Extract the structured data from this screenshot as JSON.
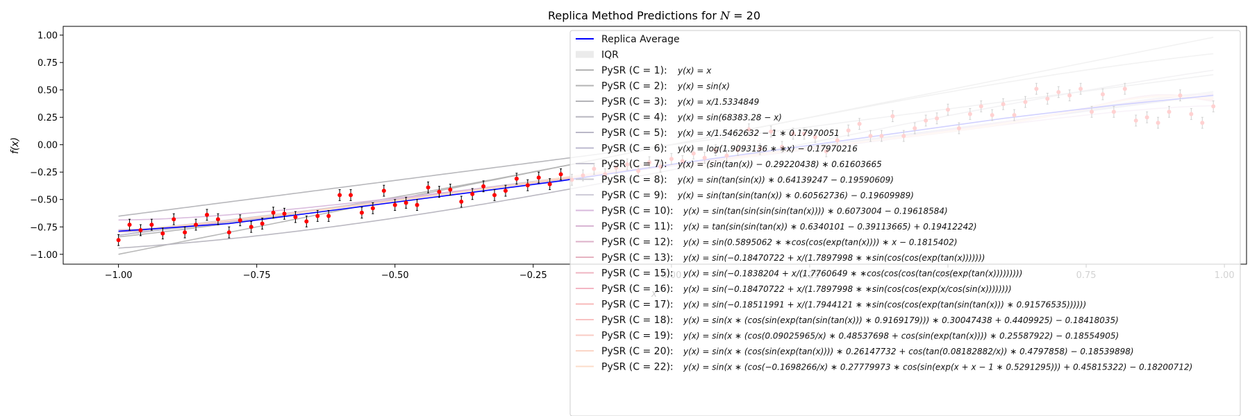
{
  "chart_data": {
    "type": "line",
    "title": "Replica Method Predictions for N = 20",
    "title_parts": [
      "Replica Method Predictions for ",
      "N",
      " = 20"
    ],
    "xlabel": "x",
    "ylabel": "f(x)",
    "xlim": [
      -1.1,
      1.04
    ],
    "ylim": [
      -1.09,
      1.08
    ],
    "xticks": [
      -1.0,
      -0.75,
      -0.5,
      -0.25,
      0.0,
      0.25,
      0.5,
      0.75,
      1.0
    ],
    "xtick_labels": [
      "−1.00",
      "−0.75",
      "−0.50",
      "−0.25",
      "0.00",
      "0.25",
      "0.50",
      "0.75",
      "1.00"
    ],
    "yticks": [
      -1.0,
      -0.75,
      -0.5,
      -0.25,
      0.0,
      0.25,
      0.5,
      0.75,
      1.0
    ],
    "ytick_labels": [
      "−1.00",
      "−0.75",
      "−0.50",
      "−0.25",
      "0.00",
      "0.25",
      "0.50",
      "0.75",
      "1.00"
    ],
    "grid": false,
    "legend_position": "top-right",
    "replica_average": {
      "name": "Replica Average",
      "color": "#0000ff",
      "x": [
        -1.0,
        -0.8,
        -0.6,
        -0.4,
        -0.2,
        0.0,
        0.2,
        0.4,
        0.6,
        0.8,
        0.98
      ],
      "y": [
        -0.79,
        -0.72,
        -0.59,
        -0.46,
        -0.33,
        -0.18,
        -0.04,
        0.1,
        0.24,
        0.36,
        0.45
      ]
    },
    "iqr": {
      "name": "IQR",
      "color": "#dddddd"
    },
    "data_points": {
      "x": [
        -1.0,
        -0.98,
        -0.96,
        -0.94,
        -0.92,
        -0.9,
        -0.88,
        -0.86,
        -0.84,
        -0.82,
        -0.8,
        -0.78,
        -0.76,
        -0.74,
        -0.72,
        -0.7,
        -0.68,
        -0.66,
        -0.64,
        -0.62,
        -0.6,
        -0.58,
        -0.56,
        -0.54,
        -0.52,
        -0.5,
        -0.48,
        -0.46,
        -0.44,
        -0.42,
        -0.4,
        -0.38,
        -0.36,
        -0.34,
        -0.32,
        -0.3,
        -0.28,
        -0.26,
        -0.24,
        -0.22,
        -0.2,
        -0.18,
        -0.16,
        -0.14,
        -0.12,
        -0.1,
        -0.08,
        -0.06,
        -0.04,
        -0.02,
        0.0,
        0.02,
        0.04,
        0.06,
        0.08,
        0.1,
        0.12,
        0.14,
        0.16,
        0.18,
        0.2,
        0.22,
        0.24,
        0.26,
        0.28,
        0.3,
        0.32,
        0.34,
        0.36,
        0.38,
        0.4,
        0.42,
        0.44,
        0.46,
        0.48,
        0.5,
        0.52,
        0.54,
        0.56,
        0.58,
        0.6,
        0.62,
        0.64,
        0.66,
        0.68,
        0.7,
        0.72,
        0.74,
        0.76,
        0.78,
        0.8,
        0.82,
        0.84,
        0.86,
        0.88,
        0.9,
        0.92,
        0.94,
        0.96,
        0.98
      ],
      "y": [
        -0.87,
        -0.73,
        -0.78,
        -0.73,
        -0.81,
        -0.68,
        -0.8,
        -0.73,
        -0.64,
        -0.68,
        -0.8,
        -0.69,
        -0.75,
        -0.72,
        -0.62,
        -0.63,
        -0.66,
        -0.7,
        -0.65,
        -0.65,
        -0.46,
        -0.46,
        -0.62,
        -0.58,
        -0.42,
        -0.55,
        -0.53,
        -0.55,
        -0.39,
        -0.43,
        -0.41,
        -0.52,
        -0.45,
        -0.38,
        -0.46,
        -0.42,
        -0.31,
        -0.37,
        -0.3,
        -0.36,
        -0.27,
        -0.32,
        -0.28,
        -0.22,
        -0.27,
        -0.21,
        -0.18,
        -0.24,
        -0.16,
        -0.2,
        -0.13,
        -0.15,
        -0.08,
        -0.12,
        -0.05,
        -0.1,
        -0.05,
        0.14,
        -0.04,
        0.12,
        -0.02,
        0.1,
        0.1,
        0.07,
        -0.06,
        0.04,
        0.13,
        0.19,
        0.08,
        0.08,
        0.26,
        0.08,
        0.15,
        0.22,
        0.24,
        0.32,
        0.15,
        0.28,
        0.35,
        0.27,
        0.37,
        0.27,
        0.39,
        0.51,
        0.42,
        0.48,
        0.45,
        0.51,
        0.3,
        0.46,
        0.3,
        0.51,
        0.22,
        0.25,
        0.2,
        0.3,
        0.45,
        0.28,
        0.2,
        0.35
      ],
      "err": 0.05
    },
    "pysr_models": [
      {
        "label": "PySR (C = 1):",
        "expr": "y(x) = x",
        "color": "#b4b4b4"
      },
      {
        "label": "PySR (C = 2):",
        "expr": "y(x) = sin(x)",
        "color": "#b4b4b4"
      },
      {
        "label": "PySR (C = 3):",
        "expr": "y(x) = x/1.5334849",
        "color": "#b4b4b8"
      },
      {
        "label": "PySR (C = 4):",
        "expr": "y(x) = sin(68383.28 − x)",
        "color": "#b7b5bf"
      },
      {
        "label": "PySR (C = 5):",
        "expr": "y(x) = x/1.5462632 − 1 ∗ 0.17970051",
        "color": "#bab8c7"
      },
      {
        "label": "PySR (C = 6):",
        "expr": "y(x) = log(1.9093136 ∗ ∗x) − 0.17970216",
        "color": "#bcb8cf"
      },
      {
        "label": "PySR (C = 7):",
        "expr": "y(x) = (sin(tan(x)) − 0.29220438) ∗ 0.61603665",
        "color": "#c4c2cf"
      },
      {
        "label": "PySR (C = 8):",
        "expr": "y(x) = sin(tan(sin(x)) ∗ 0.64139247 − 0.19590609)",
        "color": "#c9c8d2"
      },
      {
        "label": "PySR (C = 9):",
        "expr": "y(x) = sin(tan(sin(tan(x)) ∗ 0.60562736) − 0.19609989)",
        "color": "#cfccd8"
      },
      {
        "label": "PySR (C = 10):",
        "expr": "y(x) = sin(tan(sin(sin(sin(tan(x)))) ∗ 0.6073004 − 0.19618584)",
        "color": "#d8b9dc"
      },
      {
        "label": "PySR (C = 11):",
        "expr": "y(x) = tan(sin(sin(tan(x)) ∗ 0.6340101 − 0.39113665) + 0.19412242)",
        "color": "#d9b5d4"
      },
      {
        "label": "PySR (C = 12):",
        "expr": "y(x) = sin(0.5895062 ∗ ∗cos(cos(exp(tan(x)))) ∗ x − 0.1815402)",
        "color": "#deb0c8"
      },
      {
        "label": "PySR (C = 13):",
        "expr": "y(x) = sin(−0.18470722 + x/(1.7897998 ∗ ∗sin(cos(cos(exp(tan(x)))))))",
        "color": "#e6b3c1"
      },
      {
        "label": "PySR (C = 15):",
        "expr": "y(x) = sin(−0.1838204 + x/(1.7760649 ∗ ∗cos(cos(cos(tan(cos(exp(tan(x)))))))))",
        "color": "#efb4c2"
      },
      {
        "label": "PySR (C = 16):",
        "expr": "y(x) = sin(−0.18470722 + x/(1.7897998 ∗ ∗sin(cos(cos(exp(x/cos(sin(x))))))))",
        "color": "#f4b6c4"
      },
      {
        "label": "PySR (C = 17):",
        "expr": "y(x) = sin(−0.18511991 + x/(1.7944121 ∗ ∗sin(cos(cos(exp(tan(sin(tan(x))) ∗ 0.91576535))))))",
        "color": "#f8b8b8"
      },
      {
        "label": "PySR (C = 18):",
        "expr": "y(x) = sin(x ∗ (cos(sin(exp(tan(sin(tan(x))) ∗ 0.9169179))) ∗ 0.30047438 + 0.4409925) − 0.18418035)",
        "color": "#f9c2c2"
      },
      {
        "label": "PySR (C = 19):",
        "expr": "y(x) = sin(x ∗ (cos(0.09025965/x) ∗ 0.48537698 + cos(sin(exp(tan(x)))) ∗ 0.25587922) − 0.18554905)",
        "color": "#facbc4"
      },
      {
        "label": "PySR (C = 20):",
        "expr": "y(x) = sin(x ∗ (cos(sin(exp(tan(x)))) ∗ 0.26147732 + cos(tan(0.08182882/x)) ∗ 0.4797858) − 0.18539898)",
        "color": "#fbd5c6"
      },
      {
        "label": "PySR (C = 22):",
        "expr": "y(x) = sin(x ∗ (cos(−0.1698266/x) ∗ 0.27779973 ∗ cos(sin(exp(x + x − 1 ∗ 0.5291295))) + 0.45815322) − 0.18200712)",
        "color": "#fcdcc9"
      }
    ]
  }
}
